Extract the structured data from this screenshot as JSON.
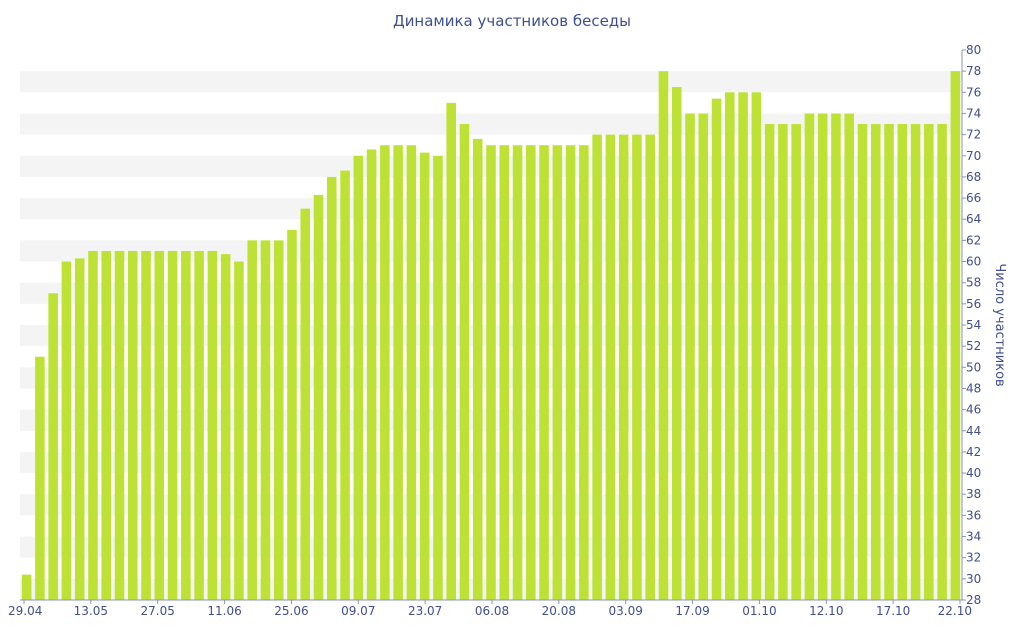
{
  "chart_data": {
    "type": "bar",
    "title": "Динамика участников беседы",
    "ylabel": "Число участников",
    "xlabel": "",
    "ylim": [
      28,
      80
    ],
    "y_ticks": [
      28,
      30,
      32,
      34,
      36,
      38,
      40,
      42,
      44,
      46,
      48,
      50,
      52,
      54,
      56,
      58,
      60,
      62,
      64,
      66,
      68,
      70,
      72,
      74,
      76,
      78,
      80
    ],
    "x_tick_labels": [
      "29.04",
      "13.05",
      "27.05",
      "11.06",
      "25.06",
      "09.07",
      "23.07",
      "06.08",
      "20.08",
      "03.09",
      "17.09",
      "01.10",
      "12.10",
      "17.10",
      "22.10"
    ],
    "values": [
      30.4,
      51,
      57,
      60,
      60.3,
      61,
      61,
      61,
      61,
      61,
      61,
      61,
      61,
      61,
      61,
      60.7,
      60,
      62,
      62,
      62,
      63,
      65,
      66.3,
      68,
      68.6,
      70,
      70.6,
      71,
      71,
      71,
      70.3,
      70,
      75,
      73,
      71.6,
      71,
      71,
      71,
      71,
      71,
      71,
      71,
      71,
      72,
      72,
      72,
      72,
      72,
      78,
      76.5,
      74,
      74,
      75.4,
      76,
      76,
      76,
      73,
      73,
      73,
      74,
      74,
      74,
      74,
      73,
      73,
      73,
      73,
      73,
      73,
      73,
      78
    ],
    "bar_color": "#bde235",
    "grid": "alternating horizontal bands",
    "y_axis_position": "right"
  }
}
